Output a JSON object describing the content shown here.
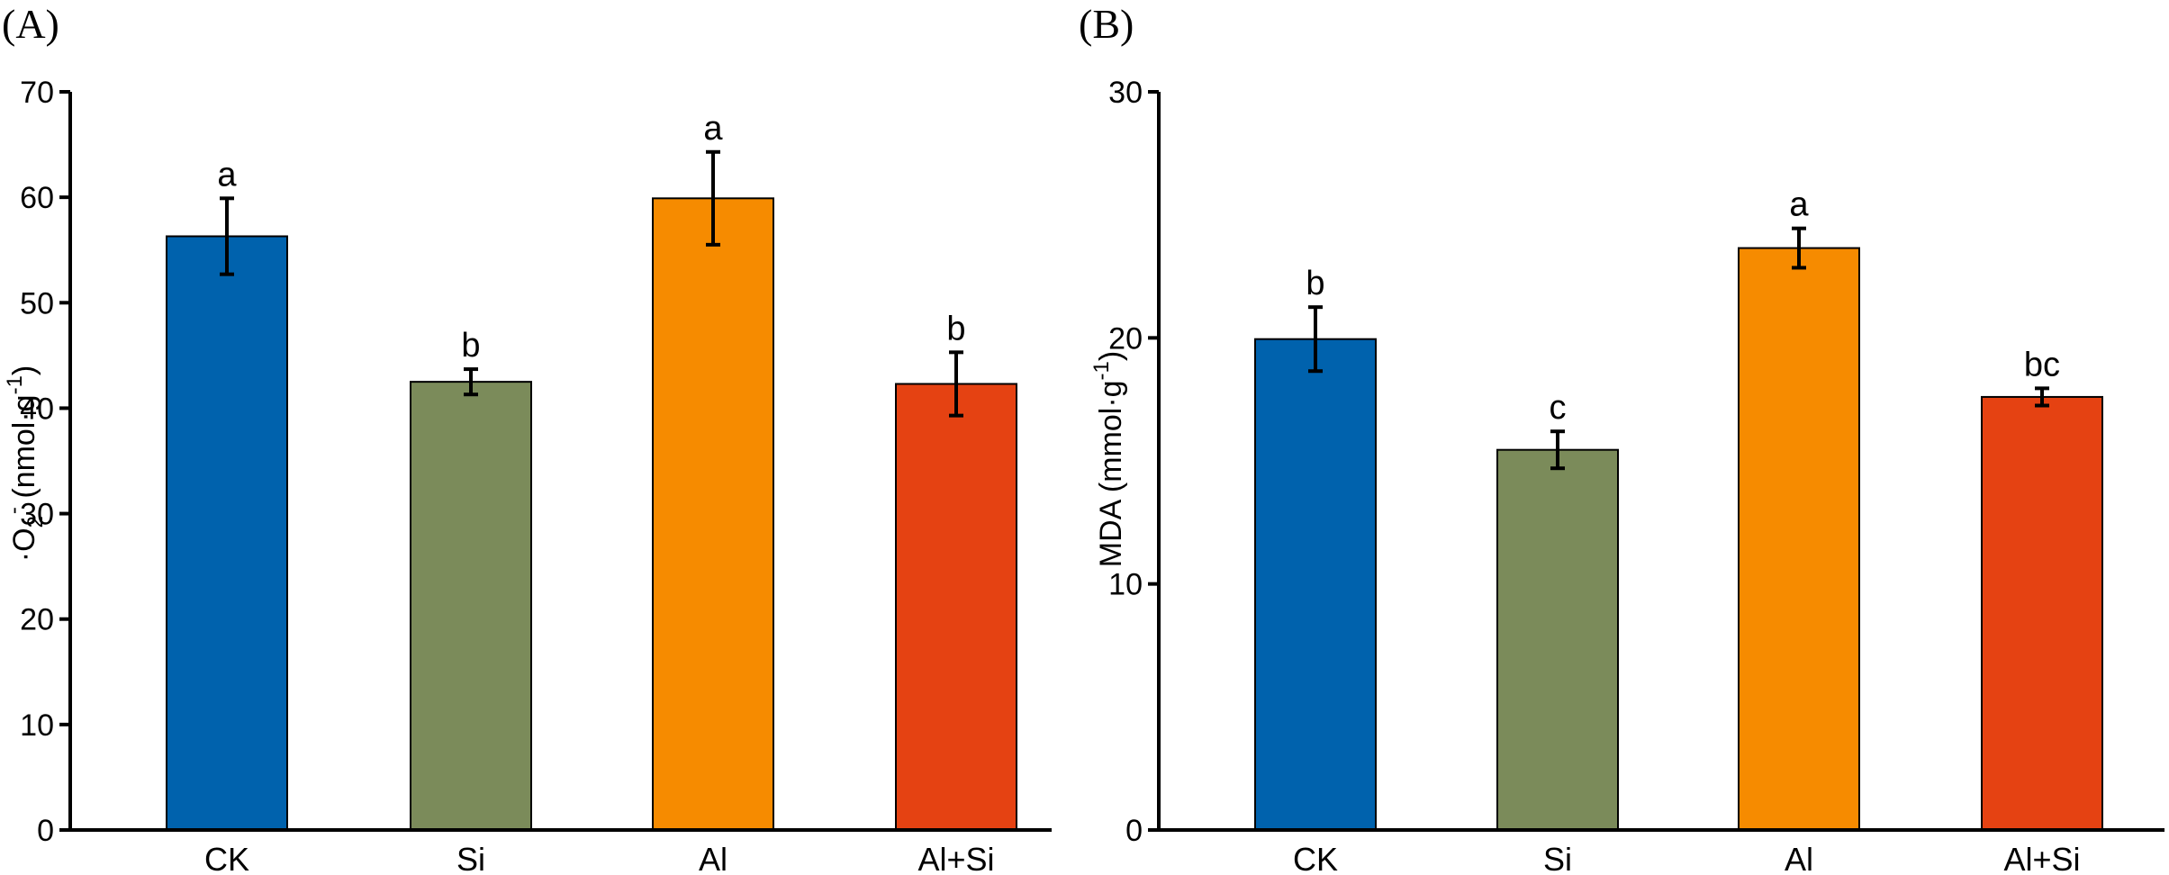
{
  "chart_data": [
    {
      "type": "bar",
      "panel": "(A)",
      "categories": [
        "CK",
        "Si",
        "Al",
        "Al+Si"
      ],
      "values": [
        56.3,
        42.5,
        59.9,
        42.3
      ],
      "errors": [
        3.6,
        1.2,
        4.4,
        3.0
      ],
      "significance": [
        "a",
        "b",
        "a",
        "b"
      ],
      "colors": [
        "#0062ad",
        "#7b8b5a",
        "#f68b00",
        "#e54212"
      ],
      "ylabel": {
        "prefix": "·O",
        "sub": "2",
        "sup": "-",
        "unit": " (nmol·g",
        "unit_sup": "-1",
        "close": ")"
      },
      "ylim": [
        0,
        70
      ],
      "yticks": [
        "0",
        "10",
        "20",
        "30",
        "40",
        "50",
        "60",
        "70"
      ],
      "grid": false
    },
    {
      "type": "bar",
      "panel": "(B)",
      "categories": [
        "CK",
        "Si",
        "Al",
        "Al+Si"
      ],
      "values": [
        19.95,
        15.45,
        23.65,
        17.6
      ],
      "errors": [
        1.3,
        0.75,
        0.8,
        0.35
      ],
      "significance": [
        "b",
        "c",
        "a",
        "bc"
      ],
      "colors": [
        "#0062ad",
        "#7b8b5a",
        "#f68b00",
        "#e54212"
      ],
      "ylabel": {
        "prefix": "MDA (mmol·g",
        "sup": "-1",
        "close": ")"
      },
      "ylim": [
        0,
        30
      ],
      "yticks": [
        "0",
        "10",
        "20",
        "30"
      ],
      "grid": false
    }
  ]
}
